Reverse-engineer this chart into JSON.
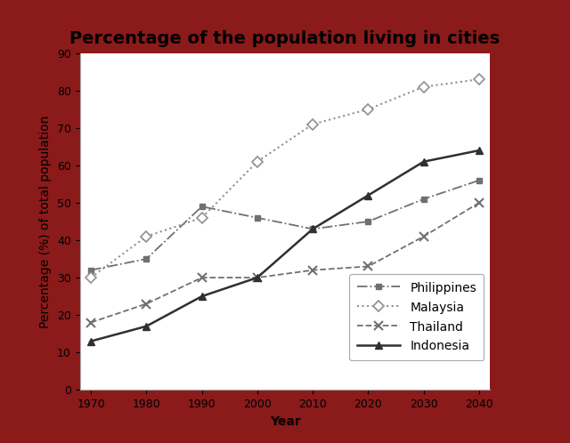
{
  "title": "Percentage of the population living in cities",
  "xlabel": "Year",
  "ylabel": "Percentage (%) of total population",
  "years": [
    1970,
    1980,
    1990,
    2000,
    2010,
    2020,
    2030,
    2040
  ],
  "philippines": [
    32,
    35,
    49,
    46,
    43,
    45,
    51,
    56
  ],
  "malaysia": [
    30,
    41,
    46,
    61,
    71,
    75,
    81,
    83
  ],
  "thailand": [
    18,
    23,
    30,
    30,
    32,
    33,
    41,
    50
  ],
  "indonesia": [
    13,
    17,
    25,
    30,
    43,
    52,
    61,
    64
  ],
  "philippines_color": "#707070",
  "malaysia_color": "#909090",
  "thailand_color": "#707070",
  "indonesia_color": "#303030",
  "ylim": [
    0,
    90
  ],
  "yticks": [
    0,
    10,
    20,
    30,
    40,
    50,
    60,
    70,
    80,
    90
  ],
  "background_color": "#ffffff",
  "border_color": "#8B1A1A",
  "title_fontsize": 14,
  "axis_label_fontsize": 10,
  "tick_fontsize": 9,
  "legend_fontsize": 10
}
